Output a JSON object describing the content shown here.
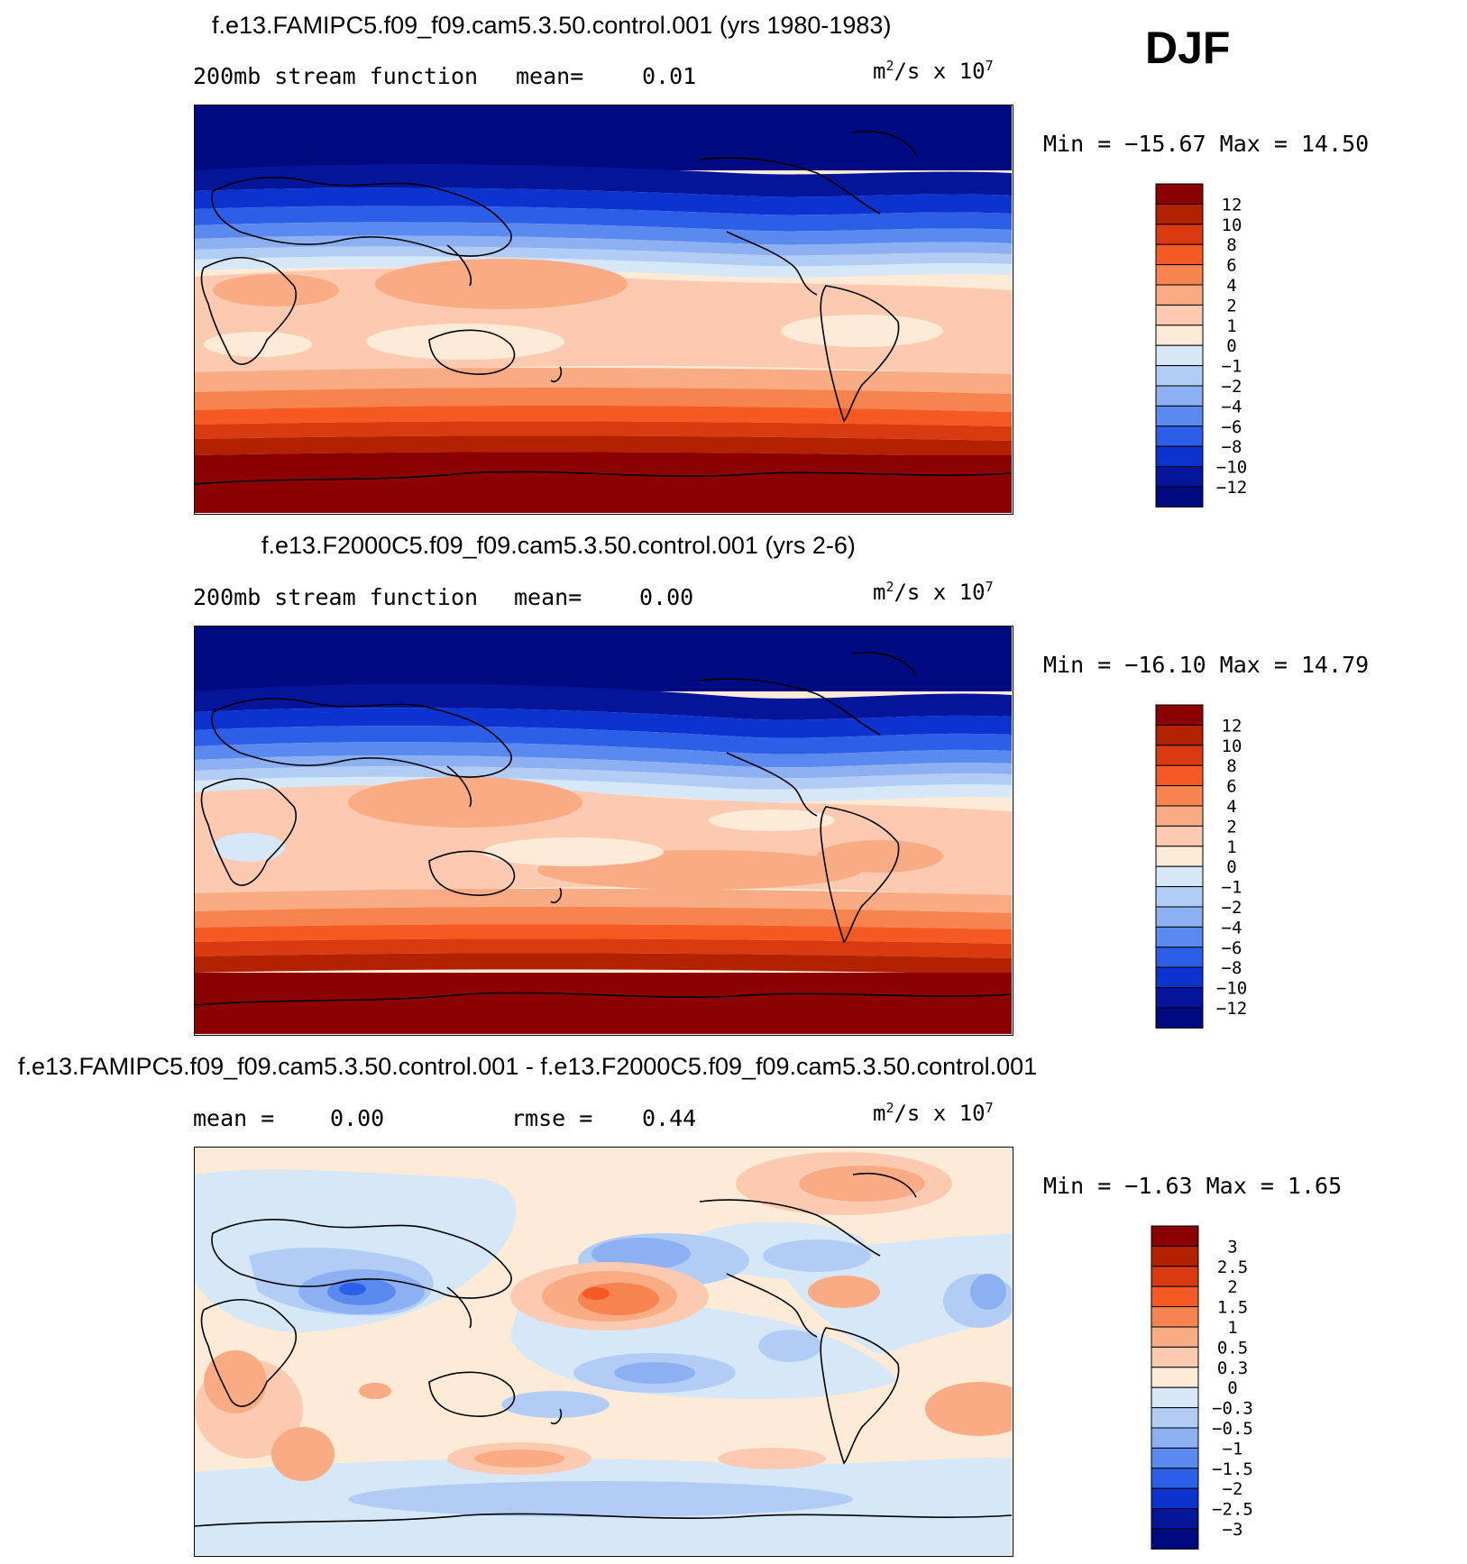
{
  "season": "DJF",
  "units": {
    "base": "m",
    "exp1": "2",
    "mid": "/s x 10",
    "exp2": "7"
  },
  "panels": [
    {
      "title": "f.e13.FAMIPC5.f09_f09.cam5.3.50.control.001 (yrs 1980-1983)",
      "left_label": "200mb stream function",
      "stat1_label": "mean=",
      "stat1_value": "0.01",
      "minmax": "Min = −15.67 Max =   14.50",
      "levels": [
        "12",
        "10",
        "8",
        "6",
        "4",
        "2",
        "1",
        "0",
        "−1",
        "−2",
        "−4",
        "−6",
        "−8",
        "−10",
        "−12"
      ]
    },
    {
      "title": "f.e13.F2000C5.f09_f09.cam5.3.50.control.001 (yrs 2-6)",
      "left_label": "200mb stream function",
      "stat1_label": "mean=",
      "stat1_value": "0.00",
      "minmax": "Min = −16.10 Max =   14.79",
      "levels": [
        "12",
        "10",
        "8",
        "6",
        "4",
        "2",
        "1",
        "0",
        "−1",
        "−2",
        "−4",
        "−6",
        "−8",
        "−10",
        "−12"
      ]
    },
    {
      "title": "f.e13.FAMIPC5.f09_f09.cam5.3.50.control.001 - f.e13.F2000C5.f09_f09.cam5.3.50.control.001",
      "left_label": "mean =",
      "stat1_label": "",
      "stat1_value": "0.00",
      "stat2_label": "rmse =",
      "stat2_value": "0.44",
      "minmax": "Min =  −1.63 Max =   1.65",
      "levels": [
        "3",
        "2.5",
        "2",
        "1.5",
        "1",
        "0.5",
        "0.3",
        "0",
        "−0.3",
        "−0.5",
        "−1",
        "−1.5",
        "−2",
        "−2.5",
        "−3"
      ]
    }
  ],
  "colors": {
    "scale": [
      "#8b0000",
      "#b22200",
      "#d93a10",
      "#f55a25",
      "#f7834f",
      "#f9ab83",
      "#fccab0",
      "#fdebd8",
      "#d6e7f8",
      "#b2cdf5",
      "#8cb0f2",
      "#5a8af0",
      "#2c5ee8",
      "#0c33d0",
      "#05159a",
      "#000a80"
    ],
    "land_outline": "#000000"
  },
  "chart_data": [
    {
      "type": "heatmap",
      "title": "f.e13.FAMIPC5.f09_f09.cam5.3.50.control.001 (yrs 1980-1983)",
      "variable": "200mb stream function",
      "units": "m^2/s x 10^7",
      "mean": 0.01,
      "min": -15.67,
      "max": 14.5,
      "contour_levels": [
        -12,
        -10,
        -8,
        -6,
        -4,
        -2,
        -1,
        0,
        1,
        2,
        4,
        6,
        8,
        10,
        12
      ],
      "zonal_pattern": "negative (blue) in the northern hemisphere, positive (red) in the southern hemisphere"
    },
    {
      "type": "heatmap",
      "title": "f.e13.F2000C5.f09_f09.cam5.3.50.control.001 (yrs 2-6)",
      "variable": "200mb stream function",
      "units": "m^2/s x 10^7",
      "mean": 0.0,
      "min": -16.1,
      "max": 14.79,
      "contour_levels": [
        -12,
        -10,
        -8,
        -6,
        -4,
        -2,
        -1,
        0,
        1,
        2,
        4,
        6,
        8,
        10,
        12
      ]
    },
    {
      "type": "heatmap",
      "title": "f.e13.FAMIPC5.f09_f09.cam5.3.50.control.001 - f.e13.F2000C5.f09_f09.cam5.3.50.control.001",
      "units": "m^2/s x 10^7",
      "mean": 0.0,
      "rmse": 0.44,
      "min": -1.63,
      "max": 1.65,
      "contour_levels": [
        -3,
        -2.5,
        -2,
        -1.5,
        -1,
        -0.5,
        -0.3,
        0,
        0.3,
        0.5,
        1,
        1.5,
        2,
        2.5,
        3
      ]
    }
  ]
}
